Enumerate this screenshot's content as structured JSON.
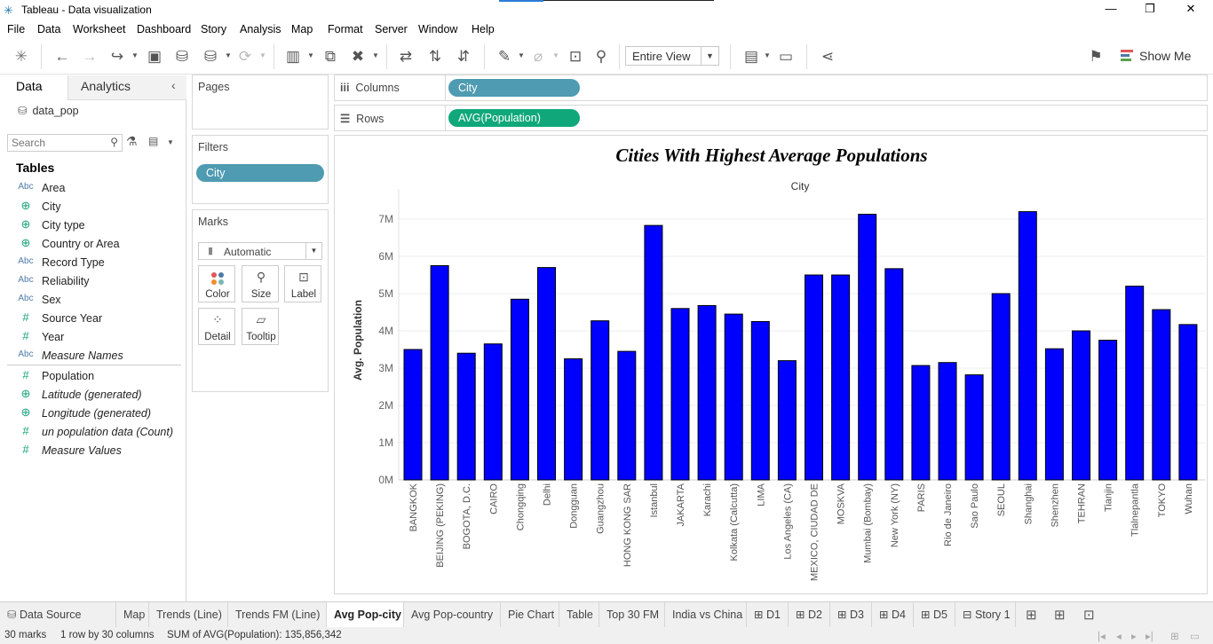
{
  "window": {
    "title": "Tableau - Data visualization",
    "minimize": "—",
    "restore": "❐",
    "close": "✕"
  },
  "menu": [
    "File",
    "Data",
    "Worksheet",
    "Dashboard",
    "Story",
    "Analysis",
    "Map",
    "Format",
    "Server",
    "Window",
    "Help"
  ],
  "toolbar": {
    "fit_value": "Entire View",
    "show_me": "Show Me"
  },
  "data_pane": {
    "tabs": [
      "Data",
      "Analytics"
    ],
    "data_source": "data_pop",
    "search_placeholder": "Search",
    "tables_heading": "Tables",
    "dimensions": [
      {
        "type": "Abc",
        "name": "Area"
      },
      {
        "type": "geo",
        "name": "City"
      },
      {
        "type": "geo",
        "name": "City type"
      },
      {
        "type": "geo",
        "name": "Country or Area"
      },
      {
        "type": "Abc",
        "name": "Record Type"
      },
      {
        "type": "Abc",
        "name": "Reliability"
      },
      {
        "type": "Abc",
        "name": "Sex"
      },
      {
        "type": "#",
        "name": "Source Year"
      },
      {
        "type": "#",
        "name": "Year"
      },
      {
        "type": "Abc",
        "name": "Measure Names",
        "italic": true
      }
    ],
    "measures": [
      {
        "type": "#",
        "name": "Population"
      },
      {
        "type": "geo",
        "name": "Latitude (generated)",
        "italic": true
      },
      {
        "type": "geo",
        "name": "Longitude (generated)",
        "italic": true
      },
      {
        "type": "#",
        "name": "un population data (Count)",
        "italic": true
      },
      {
        "type": "#",
        "name": "Measure Values",
        "italic": true
      }
    ]
  },
  "cards": {
    "pages": "Pages",
    "filters": "Filters",
    "filter_pills": [
      "City"
    ],
    "marks": "Marks",
    "mark_type": "Automatic",
    "mark_buttons": [
      "Color",
      "Size",
      "Label",
      "Detail",
      "Tooltip"
    ]
  },
  "shelves": {
    "columns_label": "Columns",
    "rows_label": "Rows",
    "columns_pill": "City",
    "rows_pill": "AVG(Population)"
  },
  "sheet_tabs": [
    {
      "label": "Data Source",
      "active": false
    },
    {
      "label": "Map",
      "active": false
    },
    {
      "label": "Trends (Line)",
      "active": false
    },
    {
      "label": "Trends FM (Line)",
      "active": false
    },
    {
      "label": "Avg Pop-city",
      "active": true
    },
    {
      "label": "Avg Pop-country",
      "active": false
    },
    {
      "label": "Pie Chart",
      "active": false
    },
    {
      "label": "Table",
      "active": false
    },
    {
      "label": "Top 30 FM",
      "active": false
    },
    {
      "label": "India vs China",
      "active": false
    },
    {
      "label": "D1",
      "active": false
    },
    {
      "label": "D2",
      "active": false
    },
    {
      "label": "D3",
      "active": false
    },
    {
      "label": "D4",
      "active": false
    },
    {
      "label": "D5",
      "active": false
    },
    {
      "label": "Story 1",
      "active": false
    }
  ],
  "status": {
    "marks": "30 marks",
    "rows_cols": "1 row by 30 columns",
    "sum": "SUM of AVG(Population): 135,856,342"
  },
  "chart_data": {
    "type": "bar",
    "title": "Cities With Highest Average Populations",
    "column_header": "City",
    "ylabel": "Avg. Population",
    "ylim": [
      0,
      7500000
    ],
    "yticks": [
      "0M",
      "1M",
      "2M",
      "3M",
      "4M",
      "5M",
      "6M",
      "7M"
    ],
    "bar_color": "#0000ff",
    "categories": [
      "BANGKOK",
      "BEIJING (PEKING)",
      "BOGOTA, D.C.",
      "CAIRO",
      "Chongqing",
      "Delhi",
      "Dongguan",
      "Guangzhou",
      "HONG KONG SAR",
      "Istanbul",
      "JAKARTA",
      "Karachi",
      "Kolkata (Calcutta)",
      "LIMA",
      "Los Angeles (CA)",
      "MEXICO, CIUDAD DE",
      "MOSKVA",
      "Mumbai (Bombay)",
      "New York (NY)",
      "PARIS",
      "Rio de Janeiro",
      "Sao Paulo",
      "SEOUL",
      "Shanghai",
      "Shenzhen",
      "TEHRAN",
      "Tianjin",
      "Tlalnepantla",
      "TOKYO",
      "Wuhan"
    ],
    "values": [
      3500000,
      5750000,
      3400000,
      3650000,
      4850000,
      5700000,
      3250000,
      4270000,
      3450000,
      6830000,
      4600000,
      4680000,
      4450000,
      4250000,
      3200000,
      5500000,
      5500000,
      7130000,
      5670000,
      3070000,
      3150000,
      2820000,
      5000000,
      7200000,
      3520000,
      4000000,
      3750000,
      5200000,
      4570000,
      4170000
    ]
  }
}
